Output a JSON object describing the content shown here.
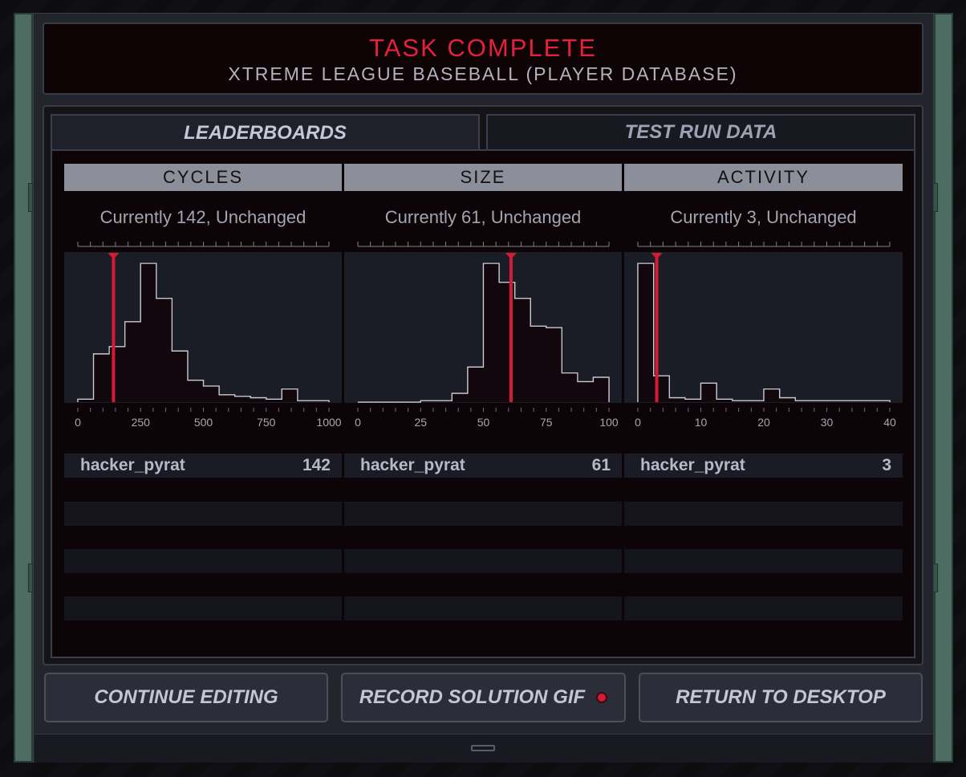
{
  "header": {
    "title": "TASK COMPLETE",
    "subtitle": "XTREME LEAGUE BASEBALL (PLAYER DATABASE)"
  },
  "tabs": {
    "leaderboards": "LEADERBOARDS",
    "test_run_data": "TEST RUN DATA"
  },
  "columns": [
    {
      "header": "CYCLES",
      "current": "Currently 142, Unchanged",
      "user": "hacker_pyrat",
      "score": "142"
    },
    {
      "header": "SIZE",
      "current": "Currently 61, Unchanged",
      "user": "hacker_pyrat",
      "score": "61"
    },
    {
      "header": "ACTIVITY",
      "current": "Currently 3, Unchanged",
      "user": "hacker_pyrat",
      "score": "3"
    }
  ],
  "buttons": {
    "continue": "CONTINUE EDITING",
    "record": "RECORD SOLUTION GIF",
    "return": "RETURN TO DESKTOP"
  },
  "colors": {
    "accent_red": "#e4203a",
    "histogram_line": "#c9cad2",
    "marker": "#d41a35"
  },
  "chart_data": [
    {
      "type": "bar",
      "title": "CYCLES",
      "x_ticks": [
        0,
        250,
        500,
        750,
        1000
      ],
      "x_tick_labels": [
        "0",
        "250",
        "500",
        "750",
        "1000"
      ],
      "xlim": [
        0,
        1000
      ],
      "bin_width": 62.5,
      "values": [
        0.02,
        0.33,
        0.38,
        0.55,
        0.95,
        0.71,
        0.35,
        0.15,
        0.11,
        0.05,
        0.04,
        0.03,
        0.02,
        0.09,
        0.01,
        0.01
      ],
      "marker": 142
    },
    {
      "type": "bar",
      "title": "SIZE",
      "x_ticks": [
        0,
        25,
        50,
        75,
        100
      ],
      "x_tick_labels": [
        "0",
        "25",
        "50",
        "75",
        "100"
      ],
      "xlim": [
        0,
        100
      ],
      "bin_width": 6.25,
      "values": [
        0.0,
        0.0,
        0.0,
        0.0,
        0.01,
        0.01,
        0.06,
        0.24,
        0.95,
        0.82,
        0.71,
        0.52,
        0.51,
        0.2,
        0.14,
        0.17
      ],
      "marker": 61
    },
    {
      "type": "bar",
      "title": "ACTIVITY",
      "x_ticks": [
        0,
        10,
        20,
        30,
        40
      ],
      "x_tick_labels": [
        "0",
        "10",
        "20",
        "30",
        "40"
      ],
      "xlim": [
        0,
        40
      ],
      "bin_width": 2.5,
      "values": [
        0.95,
        0.18,
        0.03,
        0.02,
        0.13,
        0.02,
        0.01,
        0.01,
        0.09,
        0.03,
        0.01,
        0.01,
        0.01,
        0.01,
        0.01,
        0.01
      ],
      "marker": 3
    }
  ]
}
